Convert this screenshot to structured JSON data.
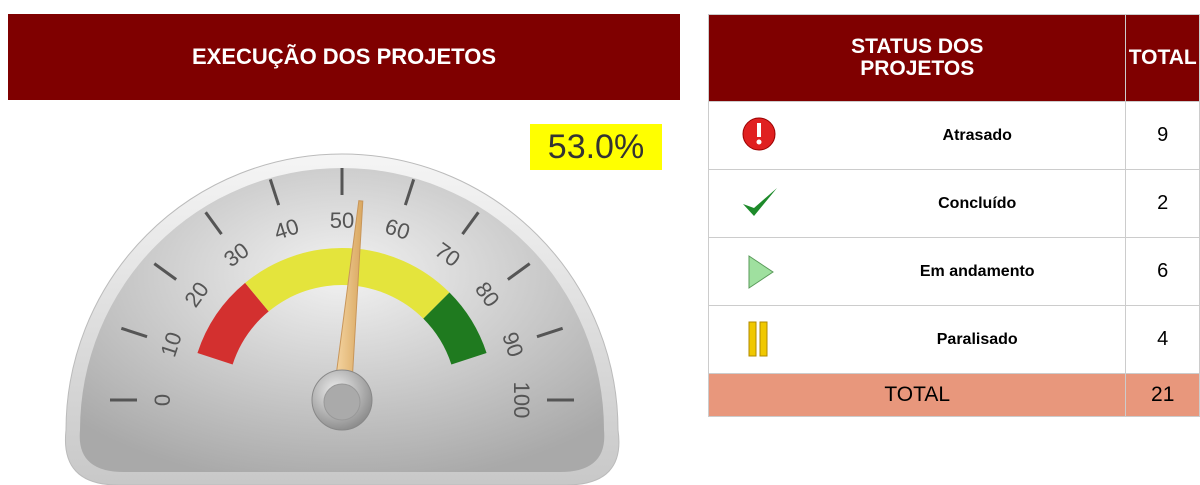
{
  "chart_data": {
    "type": "gauge",
    "title": "EXECUÇÃO DOS PROJETOS",
    "values": [
      53.0
    ],
    "value_labels": [
      "53.0%"
    ],
    "xlim": [
      0,
      100
    ],
    "xticks": [
      0,
      10,
      20,
      30,
      40,
      50,
      60,
      70,
      80,
      90,
      100
    ],
    "bands": [
      {
        "from": 10,
        "to": 28,
        "color": "#d3302f"
      },
      {
        "from": 28,
        "to": 75,
        "color": "#e4e43c"
      },
      {
        "from": 75,
        "to": 90,
        "color": "#1f7a1f"
      }
    ]
  },
  "table": {
    "header": [
      "STATUS DOS PROJETOS",
      "TOTAL"
    ],
    "rows": [
      [
        "Atrasado",
        "9"
      ],
      [
        "Concluído",
        "2"
      ],
      [
        "Em andamento",
        "6"
      ],
      [
        "Paralisado",
        "4"
      ]
    ],
    "footer": [
      "TOTAL",
      "21"
    ]
  }
}
